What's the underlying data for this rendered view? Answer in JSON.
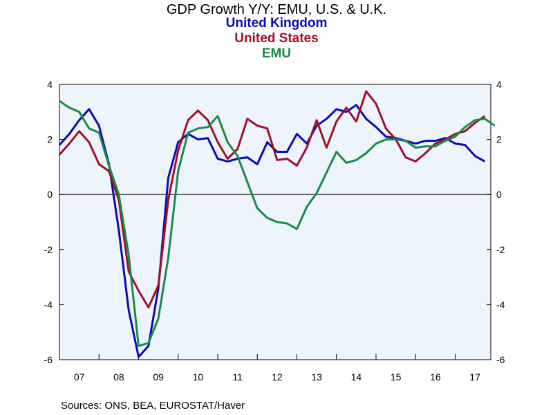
{
  "chart_data": {
    "type": "line",
    "title": "GDP Growth Y/Y: EMU, U.S. & U.K.",
    "source": "Sources:  ONS, BEA, EUROSTAT/Haver",
    "x_start": 2007.0,
    "x_step": 0.25,
    "xlim": [
      2007.0,
      2017.9
    ],
    "ylim": [
      -6,
      4
    ],
    "yticks": [
      4,
      2,
      0,
      -2,
      -4,
      -6
    ],
    "xticks": [
      "07",
      "08",
      "09",
      "10",
      "11",
      "12",
      "13",
      "14",
      "15",
      "16",
      "17"
    ],
    "zero_line": true,
    "plot_bg": "#eef4fb",
    "series": [
      {
        "name": "United Kingdom",
        "color": "#0b0bb0",
        "values": [
          1.8,
          2.2,
          2.7,
          3.1,
          2.5,
          1.1,
          -1.3,
          -4.2,
          -5.9,
          -5.5,
          -3.4,
          0.6,
          1.9,
          2.2,
          2.0,
          2.05,
          1.3,
          1.2,
          1.3,
          1.35,
          1.1,
          1.9,
          1.55,
          1.55,
          2.2,
          1.85,
          2.5,
          2.75,
          3.1,
          3.0,
          3.25,
          2.75,
          2.45,
          2.1,
          2.05,
          1.95,
          1.85,
          1.95,
          1.95,
          2.05,
          1.85,
          1.8,
          1.4,
          1.2
        ]
      },
      {
        "name": "United States",
        "color": "#a0102a",
        "values": [
          1.45,
          1.85,
          2.3,
          1.9,
          1.1,
          0.85,
          -0.2,
          -2.8,
          -3.5,
          -4.1,
          -3.3,
          -0.2,
          1.6,
          2.7,
          3.05,
          2.7,
          1.9,
          1.3,
          1.65,
          2.75,
          2.5,
          2.4,
          1.25,
          1.3,
          1.05,
          1.7,
          2.7,
          1.7,
          2.65,
          3.15,
          2.65,
          3.75,
          3.3,
          2.4,
          2.0,
          1.35,
          1.2,
          1.5,
          1.85,
          2.0,
          2.2,
          2.3,
          2.6,
          2.85
        ]
      },
      {
        "name": "EMU",
        "color": "#1a8a4a",
        "values": [
          3.4,
          3.15,
          3.0,
          2.4,
          2.25,
          1.05,
          0.0,
          -2.2,
          -5.5,
          -5.4,
          -4.5,
          -2.3,
          0.85,
          2.25,
          2.4,
          2.45,
          2.85,
          1.9,
          1.4,
          0.45,
          -0.5,
          -0.85,
          -1.0,
          -1.05,
          -1.25,
          -0.45,
          0.05,
          0.8,
          1.55,
          1.15,
          1.25,
          1.5,
          1.85,
          2.0,
          2.0,
          1.95,
          1.7,
          1.75,
          1.75,
          1.95,
          2.1,
          2.45,
          2.7,
          2.75,
          2.5
        ]
      }
    ]
  }
}
